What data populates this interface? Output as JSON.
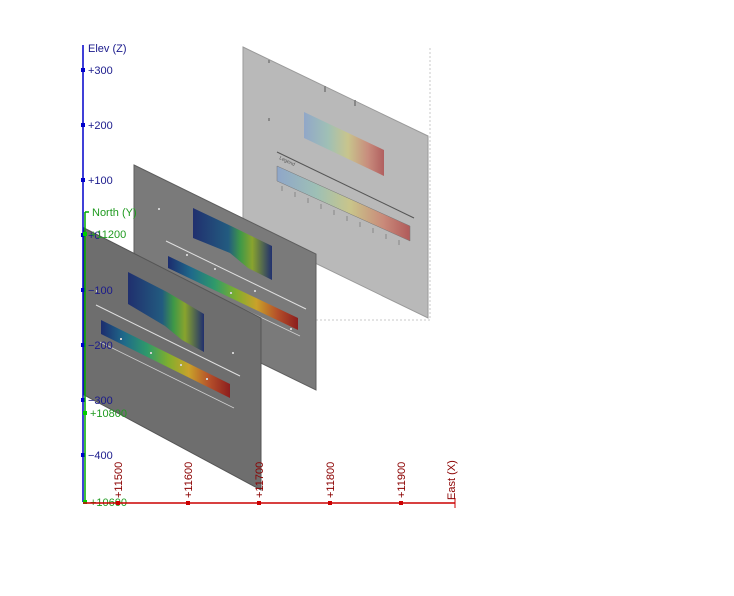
{
  "axes": {
    "z": {
      "title": "Elev (Z)",
      "ticks": [
        "+300",
        "+200",
        "+100",
        "+0",
        "−100",
        "−200",
        "−300",
        "−400"
      ],
      "color": "#0000cc"
    },
    "north": {
      "title": "North (Y)",
      "ticks": [
        "+11200",
        "+10800",
        "+10600"
      ],
      "color": "#00aa00"
    },
    "east": {
      "title": "East (X)",
      "ticks": [
        "+11500",
        "+11600",
        "+11700",
        "+11800",
        "+11900"
      ],
      "color": "#cc0000"
    }
  },
  "panels": {
    "back": {
      "kind": "section with colour bar and legend scale"
    },
    "middle": {
      "kind": "section with coloured block model"
    },
    "front": {
      "kind": "section with coloured block model"
    }
  },
  "colors": {
    "panel_gray": "#7a7a7a",
    "panel_light": "#b9b9b9",
    "ramp": [
      "#1c2c6e",
      "#1f6a8a",
      "#2f9a6a",
      "#7fae2e",
      "#c9a22a",
      "#b5502a",
      "#8c1e1e"
    ]
  }
}
